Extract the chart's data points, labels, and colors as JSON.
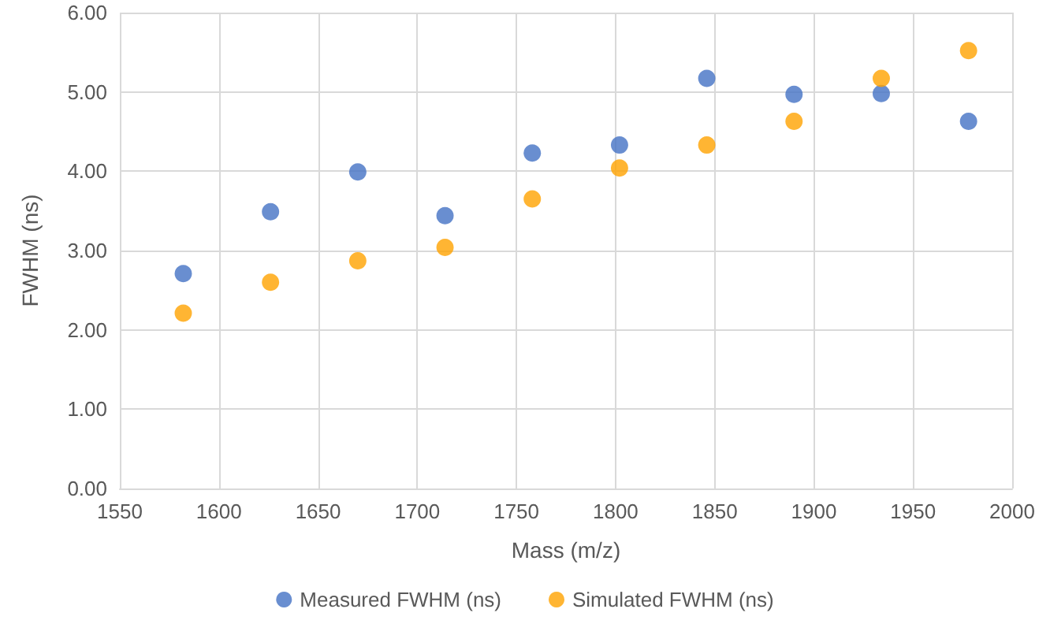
{
  "chart_data": {
    "type": "scatter",
    "xlabel": "Mass (m/z)",
    "ylabel": "FWHM (ns)",
    "x": [
      1582,
      1626,
      1670,
      1714,
      1758,
      1802,
      1846,
      1890,
      1934,
      1978
    ],
    "series": [
      {
        "name": "Measured FWHM (ns)",
        "color": "#4472c4",
        "values": [
          2.71,
          3.49,
          3.99,
          3.44,
          4.23,
          4.33,
          5.17,
          4.97,
          4.98,
          4.63
        ]
      },
      {
        "name": "Simulated FWHM (ns)",
        "color": "#ffa200",
        "values": [
          2.21,
          2.6,
          2.87,
          3.04,
          3.65,
          4.04,
          4.33,
          4.63,
          5.17,
          5.52
        ]
      }
    ],
    "xlim": [
      1550,
      2000
    ],
    "xticks": [
      1550,
      1600,
      1650,
      1700,
      1750,
      1800,
      1850,
      1900,
      1950,
      2000
    ],
    "ylim": [
      0,
      6
    ],
    "yticks": [
      {
        "value": 0,
        "label": "0.00"
      },
      {
        "value": 1,
        "label": "1.00"
      },
      {
        "value": 2,
        "label": "2.00"
      },
      {
        "value": 3,
        "label": "3.00"
      },
      {
        "value": 4,
        "label": "4.00"
      },
      {
        "value": 5,
        "label": "5.00"
      },
      {
        "value": 6,
        "label": "6.00"
      }
    ],
    "grid": true,
    "legend": "bottom",
    "marker": "circle"
  }
}
